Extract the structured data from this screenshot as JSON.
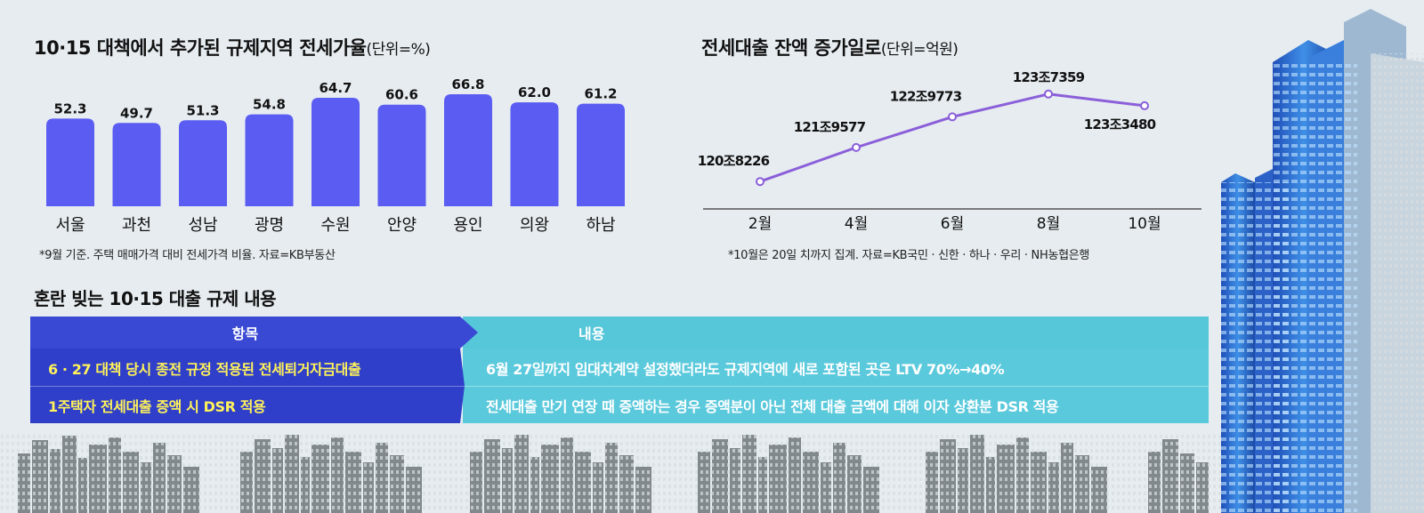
{
  "chart1": {
    "title": "10·15 대책에서 추가된 규제지역 전세가율",
    "unit": "(단위=%)",
    "note": "*9월 기준. 주택 매매가격 대비 전세가격 비율. 자료=KB부동산"
  },
  "chart2": {
    "title": "전세대출 잔액 증가일로",
    "unit": "(단위=억원)",
    "note": "*10월은 20일 치까지 집계. 자료=KB국민 · 신한 · 하나 · 우리 · NH농협은행"
  },
  "table": {
    "title": "혼란 빚는 10·15 대출 규제 내용",
    "header_item": "항목",
    "header_content": "내용",
    "rows": [
      {
        "item": "6 · 27 대책 당시 종전 규정 적용된 전세퇴거자금대출",
        "content": "6월 27일까지 임대차계약 설정했더라도 규제지역에 새로 포함된 곳은 LTV 70%→40%"
      },
      {
        "item": "1주택자 전세대출 증액 시 DSR 적용",
        "content": "전세대출 만기 연장 때 증액하는 경우 증액분이 아닌 전체 대출 금액에 대해 이자 상환분 DSR 적용"
      }
    ]
  },
  "colors": {
    "bar": "#5a5cf2",
    "line": "#8a5fd9",
    "table_left": "#2f3fc9",
    "table_right": "#5bc9dc",
    "highlight_text": "#fff25a"
  },
  "chart_data": [
    {
      "type": "bar",
      "categories": [
        "서울",
        "과천",
        "성남",
        "광명",
        "수원",
        "안양",
        "용인",
        "의왕",
        "하남"
      ],
      "values": [
        52.3,
        49.7,
        51.3,
        54.8,
        64.7,
        60.6,
        66.8,
        62.0,
        61.2
      ],
      "value_labels": [
        "52.3",
        "49.7",
        "51.3",
        "54.8",
        "64.7",
        "60.6",
        "66.8",
        "62.0",
        "61.2"
      ],
      "title": "10·15 대책에서 추가된 규제지역 전세가율",
      "unit": "(단위=%)",
      "ylim": [
        0,
        70
      ]
    },
    {
      "type": "line",
      "x": [
        "2월",
        "4월",
        "6월",
        "8월",
        "10월"
      ],
      "values": [
        1208226,
        1219577,
        1229773,
        1237359,
        1233480
      ],
      "value_labels": [
        "120조8226",
        "121조9577",
        "122조9773",
        "123조7359",
        "123조3480"
      ],
      "title": "전세대출 잔액 증가일로",
      "unit": "(단위=억원)",
      "ylim": [
        1200000,
        1245000
      ]
    }
  ]
}
